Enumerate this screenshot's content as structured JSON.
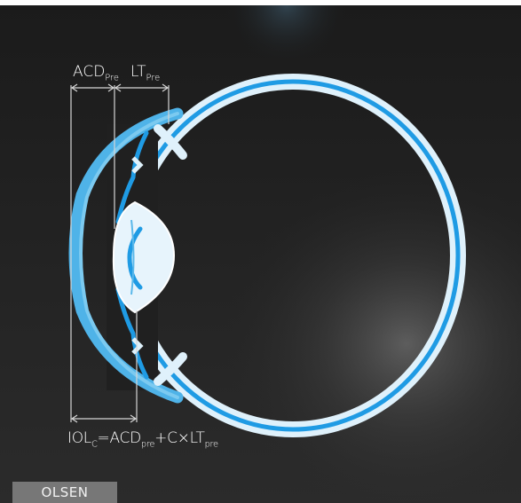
{
  "labels": {
    "acd_main": "ACD",
    "acd_sub": "Pre",
    "lt_main": "LT",
    "lt_sub": "Pre"
  },
  "formula": {
    "iol": "IOL",
    "iol_sub": "C",
    "equals": "=",
    "acd": "ACD",
    "acd_sub": "pre",
    "plus": "+",
    "c": "C",
    "times": "×",
    "lt": "LT",
    "lt_sub": "pre"
  },
  "tag": "OLSEN",
  "colors": {
    "background_top": "#1e1e1e",
    "background_bottom": "#2a2a2a",
    "eye_white": "#dff1fb",
    "eye_blue": "#1f9be4",
    "cornea_blue": "#5ab8ea",
    "lens_fill": "#e7f4fc",
    "lines": "#d8d8d8",
    "tag_bg": "#777777"
  }
}
